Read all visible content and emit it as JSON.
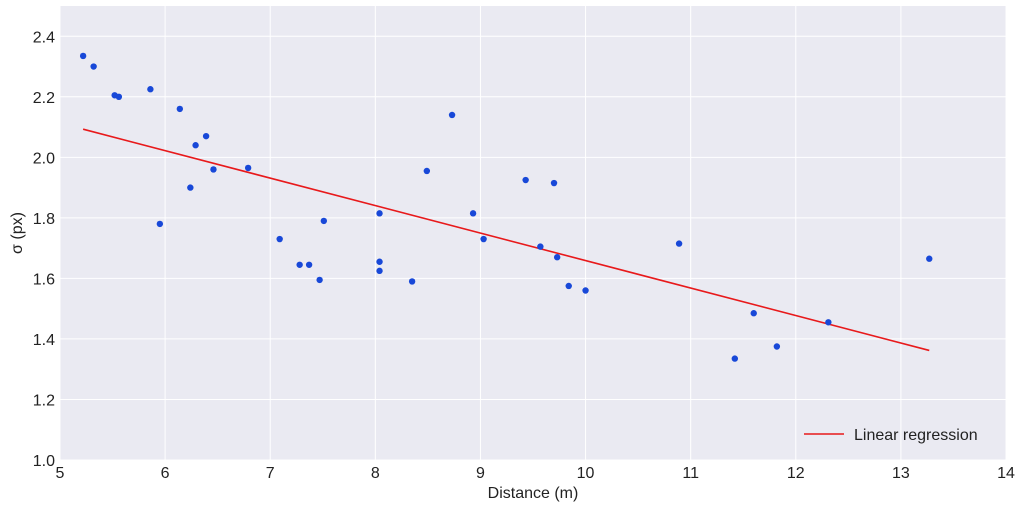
{
  "chart_data": {
    "type": "scatter",
    "title": "",
    "xlabel": "Distance (m)",
    "ylabel": "σ (px)",
    "xlim": [
      5,
      14
    ],
    "ylim": [
      1.0,
      2.5
    ],
    "xticks": [
      "5",
      "6",
      "7",
      "8",
      "9",
      "10",
      "11",
      "12",
      "13",
      "14"
    ],
    "yticks": [
      "1.0",
      "1.2",
      "1.4",
      "1.6",
      "1.8",
      "2.0",
      "2.2",
      "2.4"
    ],
    "grid": true,
    "legend_position": "bottom-right",
    "colors": {
      "points": "#1848d8",
      "regression": "#e8191b",
      "plot_background": "#eaeaf2",
      "grid": "#ffffff"
    },
    "series": [
      {
        "type": "scatter",
        "points": [
          [
            5.22,
            2.335
          ],
          [
            5.32,
            2.3
          ],
          [
            5.52,
            2.205
          ],
          [
            5.56,
            2.2
          ],
          [
            5.86,
            2.225
          ],
          [
            5.95,
            1.78
          ],
          [
            6.14,
            2.16
          ],
          [
            6.24,
            1.9
          ],
          [
            6.29,
            2.04
          ],
          [
            6.39,
            2.07
          ],
          [
            6.46,
            1.96
          ],
          [
            6.79,
            1.965
          ],
          [
            7.09,
            1.73
          ],
          [
            7.28,
            1.645
          ],
          [
            7.37,
            1.645
          ],
          [
            7.47,
            1.595
          ],
          [
            7.51,
            1.79
          ],
          [
            8.04,
            1.815
          ],
          [
            8.04,
            1.655
          ],
          [
            8.04,
            1.625
          ],
          [
            8.35,
            1.59
          ],
          [
            8.49,
            1.955
          ],
          [
            8.73,
            2.14
          ],
          [
            8.93,
            1.815
          ],
          [
            9.03,
            1.73
          ],
          [
            9.43,
            1.925
          ],
          [
            9.57,
            1.705
          ],
          [
            9.7,
            1.915
          ],
          [
            9.73,
            1.67
          ],
          [
            9.84,
            1.575
          ],
          [
            10.0,
            1.56
          ],
          [
            10.89,
            1.715
          ],
          [
            11.42,
            1.335
          ],
          [
            11.6,
            1.485
          ],
          [
            11.82,
            1.375
          ],
          [
            12.31,
            1.455
          ],
          [
            13.27,
            1.665
          ]
        ]
      },
      {
        "name": "Linear regression",
        "type": "line",
        "points": [
          [
            5.22,
            2.093
          ],
          [
            13.27,
            1.362
          ]
        ]
      }
    ]
  }
}
